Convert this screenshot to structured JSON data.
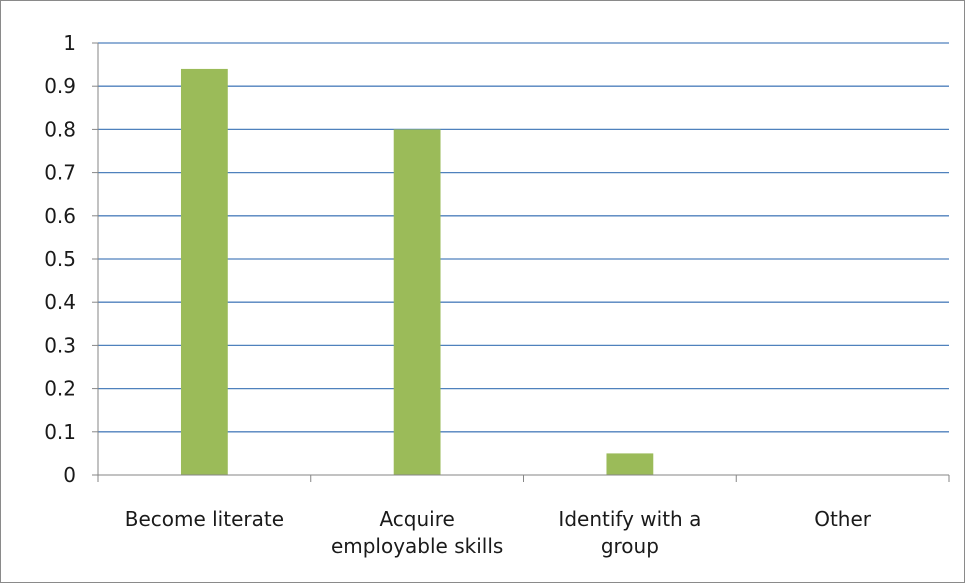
{
  "chart_data": {
    "type": "bar",
    "title": "",
    "xlabel": "",
    "ylabel": "",
    "categories": [
      [
        "Become literate"
      ],
      [
        "Acquire",
        "employable skills"
      ],
      [
        "Identify with a",
        "group"
      ],
      [
        "Other"
      ]
    ],
    "values": [
      0.94,
      0.8,
      0.05,
      0
    ],
    "ylim": [
      0,
      1
    ],
    "yticks": [
      "0",
      "0.1",
      "0.2",
      "0.3",
      "0.4",
      "0.5",
      "0.6",
      "0.7",
      "0.8",
      "0.9",
      "1"
    ],
    "grid": true,
    "legend": "none",
    "colors": {
      "bar": "#9bbb59",
      "gridline": "#4f81bd",
      "axis": "#868686",
      "text": "#1a1a1a"
    }
  }
}
